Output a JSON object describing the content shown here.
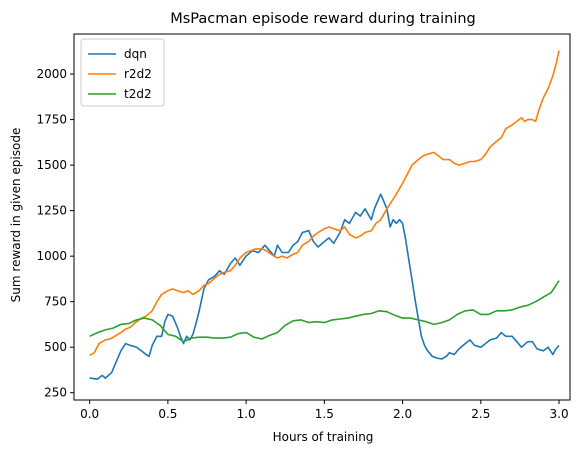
{
  "chart_data": {
    "type": "line",
    "title": "MsPacman episode reward during training",
    "xlabel": "Hours of training",
    "ylabel": "Sum reward in given episode",
    "xlim": [
      -0.1,
      3.07
    ],
    "ylim": [
      210,
      2220
    ],
    "xticks": [
      0.0,
      0.5,
      1.0,
      1.5,
      2.0,
      2.5,
      3.0
    ],
    "xtick_labels": [
      "0.0",
      "0.5",
      "1.0",
      "1.5",
      "2.0",
      "2.5",
      "3.0"
    ],
    "yticks": [
      250,
      500,
      750,
      1000,
      1250,
      1500,
      1750,
      2000
    ],
    "ytick_labels": [
      "250",
      "500",
      "750",
      "1000",
      "1250",
      "1500",
      "1750",
      "2000"
    ],
    "grid": false,
    "legend_position": "top-left",
    "series": [
      {
        "name": "dqn",
        "color": "#1f77b4",
        "points": [
          [
            0.0,
            330
          ],
          [
            0.05,
            325
          ],
          [
            0.08,
            345
          ],
          [
            0.1,
            330
          ],
          [
            0.14,
            360
          ],
          [
            0.17,
            420
          ],
          [
            0.2,
            480
          ],
          [
            0.23,
            520
          ],
          [
            0.26,
            510
          ],
          [
            0.3,
            500
          ],
          [
            0.33,
            480
          ],
          [
            0.36,
            460
          ],
          [
            0.38,
            450
          ],
          [
            0.4,
            510
          ],
          [
            0.43,
            560
          ],
          [
            0.46,
            560
          ],
          [
            0.48,
            640
          ],
          [
            0.5,
            680
          ],
          [
            0.53,
            670
          ],
          [
            0.56,
            610
          ],
          [
            0.58,
            560
          ],
          [
            0.6,
            520
          ],
          [
            0.62,
            560
          ],
          [
            0.64,
            540
          ],
          [
            0.66,
            570
          ],
          [
            0.68,
            630
          ],
          [
            0.7,
            700
          ],
          [
            0.73,
            820
          ],
          [
            0.76,
            870
          ],
          [
            0.8,
            890
          ],
          [
            0.83,
            920
          ],
          [
            0.86,
            900
          ],
          [
            0.9,
            960
          ],
          [
            0.93,
            990
          ],
          [
            0.96,
            950
          ],
          [
            1.0,
            1000
          ],
          [
            1.04,
            1030
          ],
          [
            1.08,
            1020
          ],
          [
            1.12,
            1060
          ],
          [
            1.15,
            1030
          ],
          [
            1.18,
            1000
          ],
          [
            1.2,
            1060
          ],
          [
            1.23,
            1020
          ],
          [
            1.27,
            1020
          ],
          [
            1.3,
            1060
          ],
          [
            1.33,
            1080
          ],
          [
            1.36,
            1130
          ],
          [
            1.4,
            1140
          ],
          [
            1.43,
            1080
          ],
          [
            1.46,
            1050
          ],
          [
            1.5,
            1080
          ],
          [
            1.53,
            1100
          ],
          [
            1.56,
            1070
          ],
          [
            1.6,
            1130
          ],
          [
            1.63,
            1200
          ],
          [
            1.66,
            1180
          ],
          [
            1.7,
            1240
          ],
          [
            1.73,
            1220
          ],
          [
            1.76,
            1260
          ],
          [
            1.8,
            1200
          ],
          [
            1.82,
            1260
          ],
          [
            1.84,
            1300
          ],
          [
            1.86,
            1340
          ],
          [
            1.88,
            1300
          ],
          [
            1.9,
            1260
          ],
          [
            1.92,
            1160
          ],
          [
            1.94,
            1200
          ],
          [
            1.96,
            1180
          ],
          [
            1.98,
            1200
          ],
          [
            2.0,
            1180
          ],
          [
            2.02,
            1090
          ],
          [
            2.04,
            980
          ],
          [
            2.06,
            870
          ],
          [
            2.08,
            760
          ],
          [
            2.1,
            660
          ],
          [
            2.12,
            560
          ],
          [
            2.14,
            510
          ],
          [
            2.16,
            480
          ],
          [
            2.19,
            450
          ],
          [
            2.22,
            440
          ],
          [
            2.25,
            435
          ],
          [
            2.28,
            450
          ],
          [
            2.3,
            470
          ],
          [
            2.33,
            460
          ],
          [
            2.36,
            490
          ],
          [
            2.4,
            520
          ],
          [
            2.43,
            540
          ],
          [
            2.46,
            510
          ],
          [
            2.5,
            500
          ],
          [
            2.53,
            520
          ],
          [
            2.56,
            540
          ],
          [
            2.6,
            550
          ],
          [
            2.63,
            580
          ],
          [
            2.66,
            560
          ],
          [
            2.7,
            560
          ],
          [
            2.73,
            530
          ],
          [
            2.76,
            500
          ],
          [
            2.8,
            530
          ],
          [
            2.83,
            530
          ],
          [
            2.86,
            490
          ],
          [
            2.9,
            480
          ],
          [
            2.93,
            500
          ],
          [
            2.96,
            460
          ],
          [
            2.98,
            490
          ],
          [
            3.0,
            510
          ]
        ]
      },
      {
        "name": "r2d2",
        "color": "#ff7f0e",
        "points": [
          [
            0.0,
            455
          ],
          [
            0.03,
            470
          ],
          [
            0.06,
            520
          ],
          [
            0.1,
            540
          ],
          [
            0.13,
            545
          ],
          [
            0.16,
            560
          ],
          [
            0.2,
            580
          ],
          [
            0.23,
            600
          ],
          [
            0.26,
            610
          ],
          [
            0.3,
            640
          ],
          [
            0.33,
            660
          ],
          [
            0.36,
            670
          ],
          [
            0.4,
            700
          ],
          [
            0.43,
            750
          ],
          [
            0.46,
            790
          ],
          [
            0.5,
            810
          ],
          [
            0.53,
            820
          ],
          [
            0.56,
            810
          ],
          [
            0.6,
            800
          ],
          [
            0.63,
            810
          ],
          [
            0.66,
            790
          ],
          [
            0.7,
            810
          ],
          [
            0.73,
            840
          ],
          [
            0.76,
            850
          ],
          [
            0.8,
            880
          ],
          [
            0.83,
            900
          ],
          [
            0.86,
            910
          ],
          [
            0.9,
            920
          ],
          [
            0.93,
            950
          ],
          [
            0.96,
            990
          ],
          [
            1.0,
            1020
          ],
          [
            1.03,
            1030
          ],
          [
            1.06,
            1040
          ],
          [
            1.1,
            1040
          ],
          [
            1.13,
            1030
          ],
          [
            1.16,
            1010
          ],
          [
            1.2,
            990
          ],
          [
            1.23,
            1000
          ],
          [
            1.26,
            990
          ],
          [
            1.3,
            1010
          ],
          [
            1.33,
            1020
          ],
          [
            1.36,
            1060
          ],
          [
            1.4,
            1080
          ],
          [
            1.43,
            1110
          ],
          [
            1.46,
            1130
          ],
          [
            1.5,
            1150
          ],
          [
            1.53,
            1160
          ],
          [
            1.56,
            1150
          ],
          [
            1.6,
            1140
          ],
          [
            1.63,
            1160
          ],
          [
            1.66,
            1120
          ],
          [
            1.7,
            1100
          ],
          [
            1.73,
            1110
          ],
          [
            1.76,
            1130
          ],
          [
            1.8,
            1140
          ],
          [
            1.83,
            1180
          ],
          [
            1.86,
            1200
          ],
          [
            1.9,
            1260
          ],
          [
            1.93,
            1300
          ],
          [
            1.96,
            1340
          ],
          [
            2.0,
            1400
          ],
          [
            2.03,
            1450
          ],
          [
            2.06,
            1500
          ],
          [
            2.1,
            1530
          ],
          [
            2.13,
            1550
          ],
          [
            2.16,
            1560
          ],
          [
            2.2,
            1570
          ],
          [
            2.23,
            1550
          ],
          [
            2.26,
            1530
          ],
          [
            2.3,
            1530
          ],
          [
            2.33,
            1510
          ],
          [
            2.36,
            1500
          ],
          [
            2.4,
            1510
          ],
          [
            2.43,
            1520
          ],
          [
            2.46,
            1520
          ],
          [
            2.5,
            1530
          ],
          [
            2.53,
            1560
          ],
          [
            2.56,
            1600
          ],
          [
            2.6,
            1630
          ],
          [
            2.63,
            1650
          ],
          [
            2.66,
            1700
          ],
          [
            2.7,
            1720
          ],
          [
            2.73,
            1740
          ],
          [
            2.76,
            1760
          ],
          [
            2.78,
            1740
          ],
          [
            2.8,
            1750
          ],
          [
            2.83,
            1750
          ],
          [
            2.85,
            1740
          ],
          [
            2.87,
            1800
          ],
          [
            2.9,
            1870
          ],
          [
            2.93,
            1920
          ],
          [
            2.96,
            1990
          ],
          [
            2.98,
            2050
          ],
          [
            3.0,
            2130
          ]
        ]
      },
      {
        "name": "t2d2",
        "color": "#2ca02c",
        "points": [
          [
            0.0,
            560
          ],
          [
            0.05,
            580
          ],
          [
            0.1,
            595
          ],
          [
            0.15,
            605
          ],
          [
            0.2,
            625
          ],
          [
            0.25,
            630
          ],
          [
            0.3,
            650
          ],
          [
            0.35,
            660
          ],
          [
            0.4,
            650
          ],
          [
            0.45,
            620
          ],
          [
            0.5,
            570
          ],
          [
            0.55,
            560
          ],
          [
            0.6,
            530
          ],
          [
            0.65,
            550
          ],
          [
            0.7,
            555
          ],
          [
            0.75,
            555
          ],
          [
            0.8,
            550
          ],
          [
            0.85,
            550
          ],
          [
            0.9,
            555
          ],
          [
            0.95,
            575
          ],
          [
            1.0,
            580
          ],
          [
            1.05,
            555
          ],
          [
            1.1,
            545
          ],
          [
            1.15,
            565
          ],
          [
            1.2,
            580
          ],
          [
            1.25,
            620
          ],
          [
            1.3,
            645
          ],
          [
            1.35,
            650
          ],
          [
            1.4,
            635
          ],
          [
            1.45,
            640
          ],
          [
            1.5,
            635
          ],
          [
            1.55,
            650
          ],
          [
            1.6,
            655
          ],
          [
            1.65,
            660
          ],
          [
            1.7,
            670
          ],
          [
            1.75,
            680
          ],
          [
            1.8,
            685
          ],
          [
            1.85,
            700
          ],
          [
            1.9,
            695
          ],
          [
            1.95,
            675
          ],
          [
            2.0,
            660
          ],
          [
            2.05,
            660
          ],
          [
            2.1,
            650
          ],
          [
            2.15,
            640
          ],
          [
            2.2,
            625
          ],
          [
            2.25,
            635
          ],
          [
            2.3,
            650
          ],
          [
            2.35,
            680
          ],
          [
            2.4,
            700
          ],
          [
            2.45,
            705
          ],
          [
            2.5,
            680
          ],
          [
            2.55,
            680
          ],
          [
            2.6,
            700
          ],
          [
            2.65,
            700
          ],
          [
            2.7,
            705
          ],
          [
            2.75,
            720
          ],
          [
            2.8,
            730
          ],
          [
            2.85,
            750
          ],
          [
            2.9,
            775
          ],
          [
            2.95,
            800
          ],
          [
            3.0,
            865
          ]
        ]
      }
    ]
  }
}
